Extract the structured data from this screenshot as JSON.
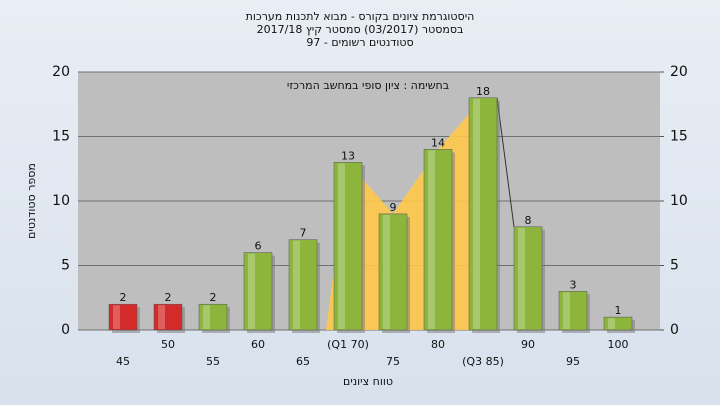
{
  "chart_data": {
    "type": "bar",
    "title": [
      "היסטוגרמת ציונים בקורס - מבוא לתכנות מערכות",
      "בסמסטר  (03/2017)  סמסטר קיץ  2017/18",
      "סטודנטים רשומים - 97"
    ],
    "annotation": "בחשימה : ציון סופי במחשב המרכזי",
    "x_label": "טווח ציונים",
    "y_label": "מספר סטודנטים",
    "categories": [
      "45",
      "50",
      "55",
      "60",
      "65",
      "(Q1 70)",
      "75",
      "80",
      "(Q3 85)",
      "90",
      "95",
      "100"
    ],
    "values": [
      2,
      2,
      2,
      6,
      7,
      13,
      9,
      14,
      18,
      8,
      3,
      1
    ],
    "colors": [
      "#d42a2a",
      "#d42a2a",
      "#8db53c",
      "#8db53c",
      "#8db53c",
      "#8db53c",
      "#8db53c",
      "#8db53c",
      "#8db53c",
      "#8db53c",
      "#8db53c",
      "#8db53c"
    ],
    "ylim": [
      0,
      20
    ],
    "yticks": [
      0,
      5,
      10,
      15,
      20
    ],
    "y2lim": [
      0,
      20
    ],
    "y2ticks": [
      0,
      5,
      10,
      15,
      20
    ],
    "grid": true
  }
}
